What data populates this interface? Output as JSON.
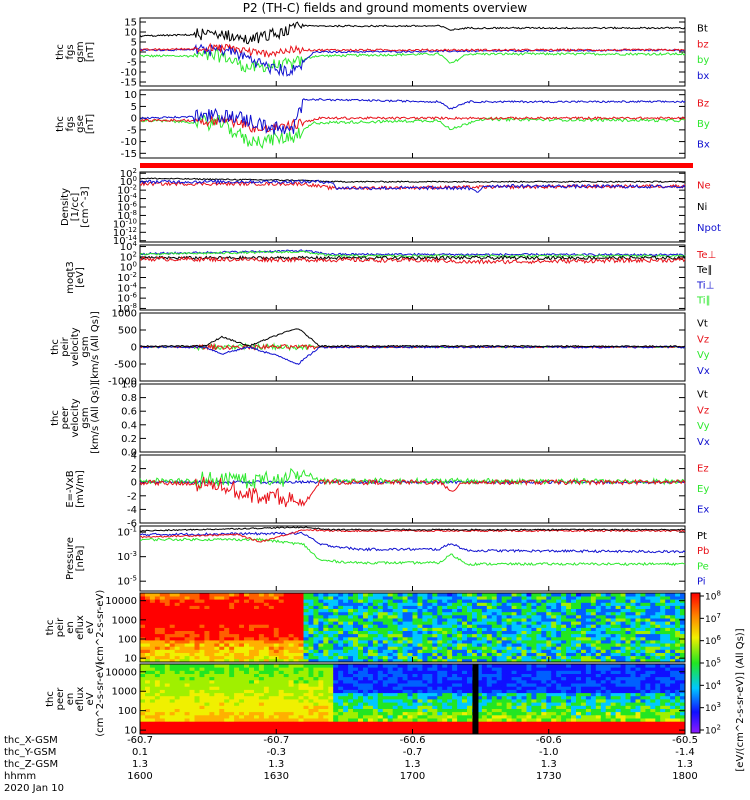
{
  "title": "P2 (TH-C) fields and ground moments overview",
  "footer": {
    "date": "2020 Jan 10",
    "rows": [
      {
        "label": "thc_X-GSM",
        "values": [
          "-60.7",
          "-60.7",
          "-60.6",
          "-60.6",
          "-60.5"
        ]
      },
      {
        "label": "thc_Y-GSM",
        "values": [
          "0.1",
          "-0.3",
          "-0.7",
          "-1.0",
          "-1.4"
        ]
      },
      {
        "label": "thc_Z-GSM",
        "values": [
          "1.3",
          "1.3",
          "1.3",
          "1.3",
          "1.3"
        ]
      },
      {
        "label": "hhmm",
        "values": [
          "1600",
          "1630",
          "1700",
          "1730",
          "1800"
        ]
      }
    ]
  },
  "colorbar": {
    "label": "[eV/(cm^2-s-sr-eV)] (All Qs)]",
    "ticks": [
      "10^8",
      "10^7",
      "10^6",
      "10^5",
      "10^4",
      "10^3",
      "10^2"
    ]
  },
  "colors": {
    "black": "#000000",
    "red": "#e8121a",
    "green": "#2ee82e",
    "blue": "#1010d0"
  },
  "chart_data": [
    {
      "type": "line",
      "panel": "fgs-gsm",
      "ylabel": [
        "thc",
        "fgs",
        "gsm",
        "[nT]"
      ],
      "ylim": [
        -17,
        17
      ],
      "yticks": [
        "15",
        "10",
        "5",
        "0",
        "-5",
        "-10",
        "-15"
      ],
      "ytick_values": [
        15,
        10,
        5,
        0,
        -5,
        -10,
        -15
      ],
      "legend": [
        {
          "label": "Bt",
          "color": "#000000"
        },
        {
          "label": "bz",
          "color": "#e8121a"
        },
        {
          "label": "by",
          "color": "#2ee82e"
        },
        {
          "label": "bx",
          "color": "#1010d0"
        }
      ]
    },
    {
      "type": "line",
      "panel": "fgs-gse",
      "ylabel": [
        "thc",
        "fgs",
        "gse",
        "[nT]"
      ],
      "ylim": [
        -17,
        12
      ],
      "yticks": [
        "10",
        "5",
        "0",
        "-5",
        "-10",
        "-15"
      ],
      "ytick_values": [
        10,
        5,
        0,
        -5,
        -10,
        -15
      ],
      "legend": [
        {
          "label": "Bz",
          "color": "#e8121a"
        },
        {
          "label": "By",
          "color": "#2ee82e"
        },
        {
          "label": "Bx",
          "color": "#1010d0"
        }
      ]
    },
    {
      "type": "line",
      "panel": "density",
      "ylabel": [
        "Density",
        "[1/cc]",
        "[cm^-3]"
      ],
      "yscale": "log",
      "yticks": [
        "10^2",
        "10^0",
        "10^-2",
        "10^-4",
        "10^-6",
        "10^-8",
        "10^-10",
        "10^-12",
        "10^-14"
      ],
      "ytick_values": [
        2,
        0,
        -2,
        -4,
        -6,
        -8,
        -10,
        -12,
        -14
      ],
      "legend": [
        {
          "label": "Ne",
          "color": "#e8121a"
        },
        {
          "label": "Ni",
          "color": "#000000"
        },
        {
          "label": "Npot",
          "color": "#1010d0"
        }
      ]
    },
    {
      "type": "line",
      "panel": "temperature",
      "ylabel": [
        "moqt3",
        "[eV]"
      ],
      "yscale": "log",
      "yticks": [
        "10^4",
        "10^2",
        "10^0",
        "10^-2",
        "10^-4",
        "10^-6",
        "10^-8"
      ],
      "ytick_values": [
        4,
        2,
        0,
        -2,
        -4,
        -6,
        -8
      ],
      "legend": [
        {
          "label": "Te⊥",
          "color": "#e8121a"
        },
        {
          "label": "Te∥",
          "color": "#000000"
        },
        {
          "label": "Ti⊥",
          "color": "#1010d0"
        },
        {
          "label": "Ti∥",
          "color": "#2ee82e"
        }
      ]
    },
    {
      "type": "line",
      "panel": "peir-velocity",
      "ylabel": [
        "thc",
        "peir",
        "velocity",
        "gsm",
        "[km/s (All Qs)]"
      ],
      "ylim": [
        -1000,
        1000
      ],
      "yticks": [
        "1000",
        "500",
        "0",
        "-500",
        "-1000"
      ],
      "ytick_values": [
        1000,
        500,
        0,
        -500,
        -1000
      ],
      "legend": [
        {
          "label": "Vt",
          "color": "#000000"
        },
        {
          "label": "Vz",
          "color": "#e8121a"
        },
        {
          "label": "Vy",
          "color": "#2ee82e"
        },
        {
          "label": "Vx",
          "color": "#1010d0"
        }
      ]
    },
    {
      "type": "line",
      "panel": "peer-velocity",
      "ylabel": [
        "thc",
        "peer",
        "velocity",
        "gsm",
        "[km/s (All Qs)]"
      ],
      "ylim": [
        0,
        1
      ],
      "yticks": [
        "1.0",
        "0.8",
        "0.6",
        "0.4",
        "0.2",
        "0.0"
      ],
      "ytick_values": [
        1.0,
        0.8,
        0.6,
        0.4,
        0.2,
        0.0
      ],
      "legend": [
        {
          "label": "Vt",
          "color": "#000000"
        },
        {
          "label": "Vz",
          "color": "#e8121a"
        },
        {
          "label": "Vy",
          "color": "#2ee82e"
        },
        {
          "label": "Vx",
          "color": "#1010d0"
        }
      ]
    },
    {
      "type": "line",
      "panel": "efield",
      "ylabel": [
        "E=-VxB",
        "[mV/m]"
      ],
      "ylim": [
        -6,
        4
      ],
      "yticks": [
        "4",
        "2",
        "0",
        "-2",
        "-4",
        "-6"
      ],
      "ytick_values": [
        4,
        2,
        0,
        -2,
        -4,
        -6
      ],
      "legend": [
        {
          "label": "Ez",
          "color": "#e8121a"
        },
        {
          "label": "Ey",
          "color": "#2ee82e"
        },
        {
          "label": "Ex",
          "color": "#1010d0"
        }
      ]
    },
    {
      "type": "line",
      "panel": "pressure",
      "ylabel": [
        "Pressure",
        "[nPa]"
      ],
      "yscale": "log",
      "yticks": [
        "10^-1",
        "10^-3",
        "10^-5"
      ],
      "ytick_values": [
        -1,
        -3,
        -5
      ],
      "legend": [
        {
          "label": "Pt",
          "color": "#000000"
        },
        {
          "label": "Pb",
          "color": "#e8121a"
        },
        {
          "label": "Pe",
          "color": "#2ee82e"
        },
        {
          "label": "Pi",
          "color": "#1010d0"
        }
      ]
    },
    {
      "type": "heatmap",
      "panel": "peir-en-eflux",
      "ylabel": [
        "thc",
        "peir",
        "en",
        "eflux",
        "eV",
        "(cm^2-s-sr-eV)"
      ],
      "yscale": "log",
      "yticks": [
        "10000",
        "1000",
        "100",
        "10"
      ],
      "ytick_values": [
        4,
        3,
        2,
        1
      ]
    },
    {
      "type": "heatmap",
      "panel": "peer-en-eflux",
      "ylabel": [
        "thc",
        "peer",
        "en",
        "eflux",
        "eV",
        "(cm^2-s-sr-eV)"
      ],
      "yscale": "log",
      "yticks": [
        "10000",
        "1000",
        "100",
        "10"
      ],
      "ytick_values": [
        4,
        3,
        2,
        1
      ]
    }
  ]
}
